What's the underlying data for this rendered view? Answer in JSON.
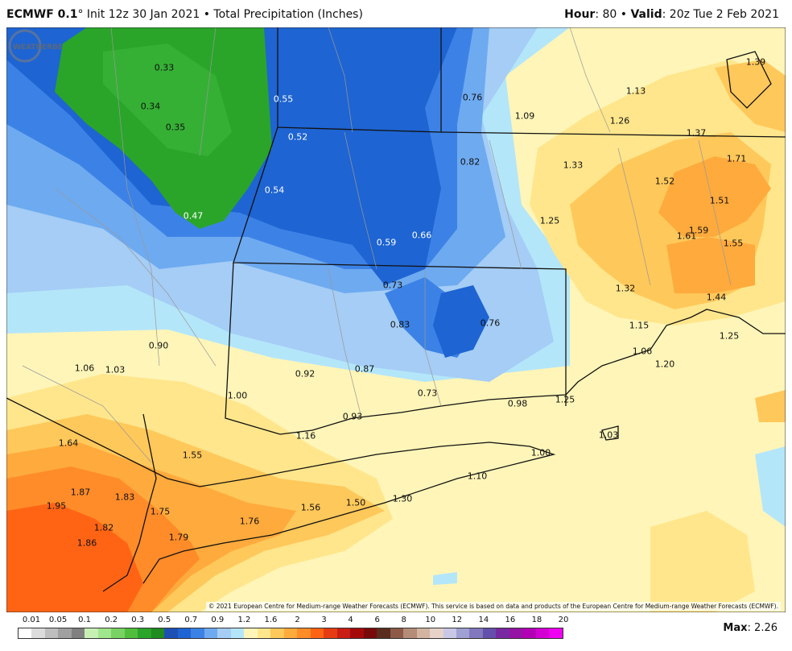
{
  "header": {
    "model": "ECMWF 0.1",
    "degree": "°",
    "init_run": " Init 12z 30 Jan 2021 • Total Precipitation (Inches)",
    "hour_label": "Hour",
    "hour_value": ": 80 • ",
    "valid_label": "Valid",
    "valid_value": ": 20z Tue 2 Feb 2021"
  },
  "map": {
    "labels": [
      {
        "text": "0.33",
        "light": false
      },
      {
        "text": "0.34",
        "light": false
      },
      {
        "text": "0.35",
        "light": false
      },
      {
        "text": "0.47",
        "light": true
      },
      {
        "text": "0.55",
        "light": true
      },
      {
        "text": "0.52",
        "light": true
      },
      {
        "text": "0.54",
        "light": true
      },
      {
        "text": "0.59",
        "light": true
      },
      {
        "text": "0.66",
        "light": true
      },
      {
        "text": "0.76",
        "light": false
      },
      {
        "text": "0.82",
        "light": false
      },
      {
        "text": "1.09",
        "light": false
      },
      {
        "text": "1.13",
        "light": false
      },
      {
        "text": "1.26",
        "light": false
      },
      {
        "text": "1.39",
        "light": false
      },
      {
        "text": "1.37",
        "light": false
      },
      {
        "text": "1.33",
        "light": false
      },
      {
        "text": "1.52",
        "light": false
      },
      {
        "text": "1.71",
        "light": false
      },
      {
        "text": "1.51",
        "light": false
      },
      {
        "text": "1.25",
        "light": false
      },
      {
        "text": "1.61",
        "light": false
      },
      {
        "text": "1.59",
        "light": false
      },
      {
        "text": "1.55",
        "light": false
      },
      {
        "text": "0.73",
        "light": false
      },
      {
        "text": "1.32",
        "light": false
      },
      {
        "text": "1.44",
        "light": false
      },
      {
        "text": "0.83",
        "light": false
      },
      {
        "text": "0.76",
        "light": false
      },
      {
        "text": "1.15",
        "light": false
      },
      {
        "text": "1.25",
        "light": false
      },
      {
        "text": "0.90",
        "light": false
      },
      {
        "text": "1.06",
        "light": false
      },
      {
        "text": "1.03",
        "light": false
      },
      {
        "text": "0.92",
        "light": false
      },
      {
        "text": "0.87",
        "light": false
      },
      {
        "text": "1.06",
        "light": false
      },
      {
        "text": "1.20",
        "light": false
      },
      {
        "text": "1.00",
        "light": false
      },
      {
        "text": "0.73",
        "light": false
      },
      {
        "text": "0.98",
        "light": false
      },
      {
        "text": "1.25",
        "light": false
      },
      {
        "text": "0.93",
        "light": false
      },
      {
        "text": "1.64",
        "light": false
      },
      {
        "text": "1.16",
        "light": false
      },
      {
        "text": "1.03",
        "light": false
      },
      {
        "text": "1.55",
        "light": false
      },
      {
        "text": "1.00",
        "light": false
      },
      {
        "text": "1.10",
        "light": false
      },
      {
        "text": "1.87",
        "light": false
      },
      {
        "text": "1.83",
        "light": false
      },
      {
        "text": "1.95",
        "light": false
      },
      {
        "text": "1.75",
        "light": false
      },
      {
        "text": "1.56",
        "light": false
      },
      {
        "text": "1.50",
        "light": false
      },
      {
        "text": "1.30",
        "light": false
      },
      {
        "text": "1.76",
        "light": false
      },
      {
        "text": "1.82",
        "light": false
      },
      {
        "text": "1.79",
        "light": false
      },
      {
        "text": "1.86",
        "light": false
      }
    ],
    "copyright": "© 2021 European Centre for Medium-range Weather Forecasts (ECMWF). This service is based on data and products of the European Centre for Medium-range Weather Forecasts (ECMWF).",
    "logo_text": "WEATHERBELL",
    "colors": {
      "green": "#2aa52a",
      "blue_dark": "#1e64d2",
      "blue_mid": "#3c82e6",
      "blue_light": "#6eaaf0",
      "blue_pale": "#a5cdf5",
      "cyan": "#b4e6fa",
      "yellow_pale": "#fff5b8",
      "yellow": "#ffe68c",
      "orange_light": "#ffc85a",
      "orange": "#ffaa3c",
      "orange_dark": "#ff8c28",
      "red_orange": "#ff6414"
    }
  },
  "colorbar": {
    "ticks": [
      "0.01",
      "0.05",
      "0.1",
      "0.2",
      "0.3",
      "0.5",
      "0.7",
      "0.9",
      "1.2",
      "1.6",
      "2",
      "3",
      "4",
      "6",
      "8",
      "10",
      "12",
      "14",
      "16",
      "18",
      "20"
    ],
    "swatches": [
      "#ffffff",
      "#dcdcdc",
      "#bebebe",
      "#a0a0a0",
      "#808080",
      "#c8f0b4",
      "#a0e68c",
      "#78d264",
      "#50be3c",
      "#2aa52a",
      "#1e8c1e",
      "#1e50b4",
      "#1e64d2",
      "#3c82e6",
      "#6eaaf0",
      "#a5cdf5",
      "#b4e6fa",
      "#fff5b8",
      "#ffe68c",
      "#ffc85a",
      "#ffaa3c",
      "#ff8c28",
      "#ff6414",
      "#e63c14",
      "#c81e14",
      "#a50a0a",
      "#780a0a",
      "#5a2d1e",
      "#8c5a46",
      "#b48c78",
      "#d2b4a0",
      "#e6d2c8",
      "#c8c8e6",
      "#a0a0d2",
      "#8278be",
      "#6450aa",
      "#7828a0",
      "#9614a5",
      "#b400b4",
      "#d200d2",
      "#f000f0"
    ],
    "max_label": "Max",
    "max_value": ": 2.26"
  }
}
